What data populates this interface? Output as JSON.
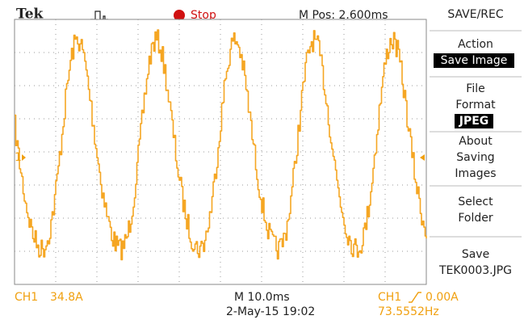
{
  "header": {
    "brand": "Tek",
    "status": "Stop",
    "position": "M Pos: 2.600ms"
  },
  "channel_marker": "1",
  "menu": {
    "title": "SAVE/REC",
    "items": [
      {
        "lines": [
          "Action"
        ],
        "selected": "Save Image"
      },
      {
        "lines": [
          "File",
          "Format"
        ],
        "selected": "JPEG"
      },
      {
        "lines": [
          "About",
          "Saving",
          "Images"
        ]
      },
      {
        "lines": [
          "Select",
          "Folder"
        ]
      },
      {
        "lines": [
          "Save",
          "TEK0003.JPG"
        ]
      }
    ]
  },
  "footer": {
    "channel": "CH1",
    "scale": "34.8A",
    "timebase": "M 10.0ms",
    "datetime": "2-May-15 19:02",
    "trigger_source": "CH1",
    "trigger_level": "0.00A",
    "frequency": "73.5552Hz"
  }
}
